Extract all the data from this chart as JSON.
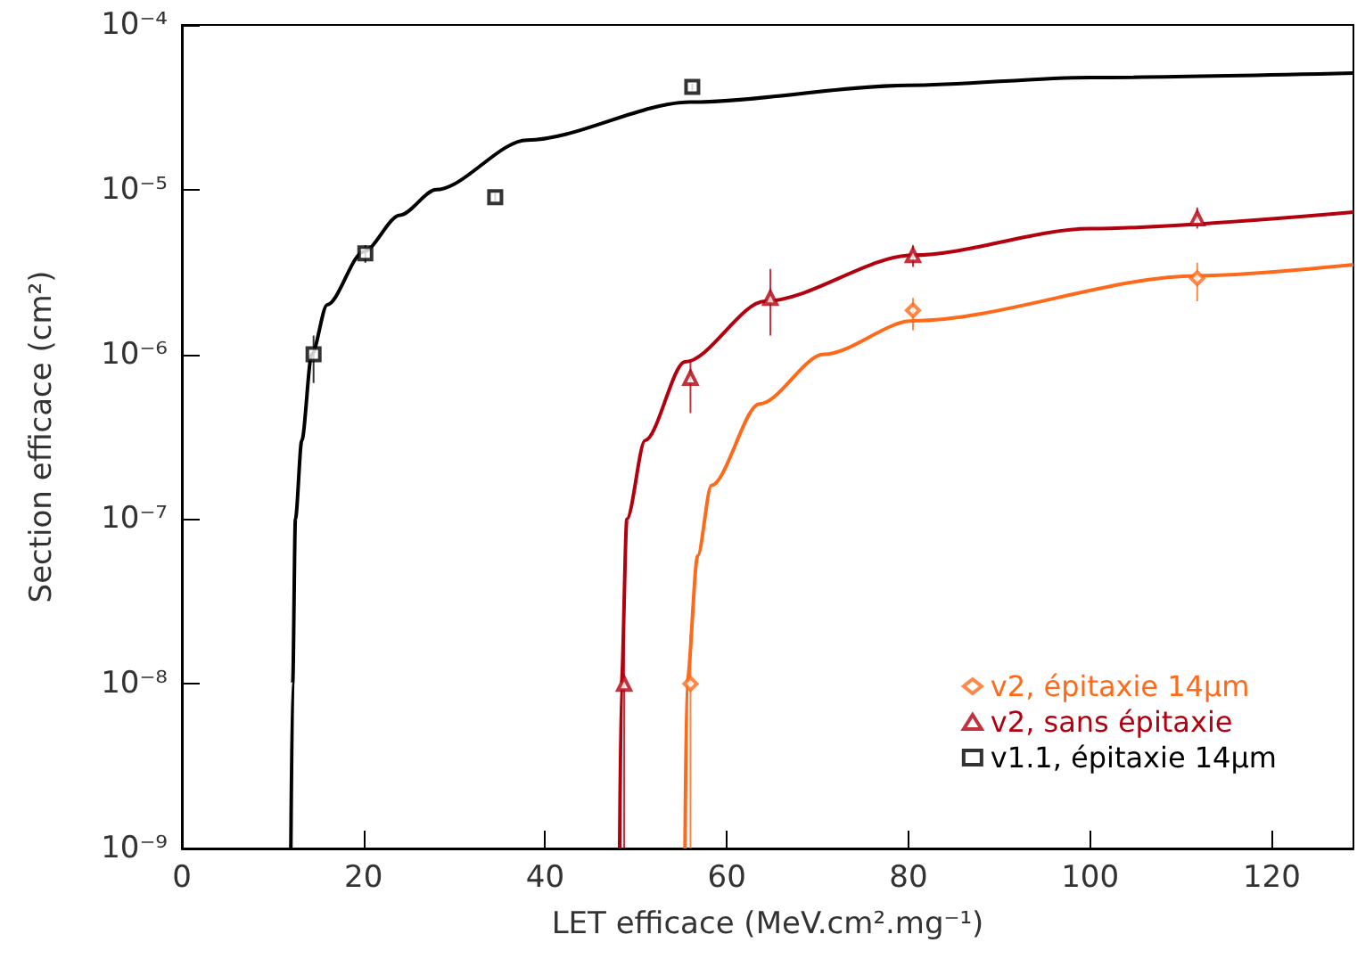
{
  "chart_data": {
    "type": "scatter",
    "xlabel": "LET efficace (MeV.cm².mg⁻¹)",
    "ylabel": "Section efficace (cm²)",
    "xlim": [
      0,
      129
    ],
    "xticks": [
      0,
      20,
      40,
      60,
      80,
      100,
      120
    ],
    "ylim": [
      1e-09,
      0.0001
    ],
    "yticks": [
      {
        "value": 1e-09,
        "label": "10⁻⁹"
      },
      {
        "value": 1e-08,
        "label": "10⁻⁸"
      },
      {
        "value": 1e-07,
        "label": "10⁻⁷"
      },
      {
        "value": 1e-06,
        "label": "10⁻⁶"
      },
      {
        "value": 1e-05,
        "label": "10⁻⁵"
      },
      {
        "value": 0.0001,
        "label": "10⁻⁴"
      }
    ],
    "log": "y",
    "grid": false,
    "legend": "bottom right",
    "series": [
      {
        "name": "v2, épitaxie 14μm",
        "color": "#ff6a1a",
        "marker": "diamond",
        "x": [
          56,
          80.5,
          111.8
        ],
        "values": [
          1e-08,
          1.85e-06,
          2.9e-06
        ],
        "errors": [
          [
            1e-09,
            2e-08
          ],
          [
            1.4e-06,
            2.2e-06
          ],
          [
            2.1e-06,
            3.6e-06
          ]
        ]
      },
      {
        "name": "v2, sans épitaxie",
        "color": "#b3000f",
        "marker": "triangle",
        "x": [
          48.7,
          56,
          64.8,
          80.5,
          111.8
        ],
        "values": [
          1e-08,
          7.2e-07,
          2.2e-06,
          4e-06,
          6.7e-06
        ],
        "errors": [
          [
            1e-09,
            2e-08
          ],
          [
            4.4e-07,
            9.3e-07
          ],
          [
            1.3e-06,
            3.3e-06
          ],
          [
            3.4e-06,
            4.6e-06
          ],
          [
            5.8e-06,
            7.8e-06
          ]
        ]
      },
      {
        "name": "v1.1, épitaxie 14μm",
        "color": "#000000",
        "marker": "square",
        "x": [
          14.5,
          20.2,
          34.5,
          56.2
        ],
        "values": [
          1e-06,
          4.1e-06,
          9e-06,
          4.2e-05
        ],
        "errors": [
          [
            6.7e-07,
            1.3e-06
          ],
          [
            3.6e-06,
            4.6e-06
          ],
          [
            8.5e-06,
            9.5e-06
          ],
          [
            4e-05,
            4.4e-05
          ]
        ]
      },
      {
        "type": "line",
        "color": "#ff6a1a",
        "marker": "none",
        "line_style": "solid",
        "x": [
          55.4,
          55.6,
          56.8,
          58.3,
          63.6,
          70.7,
          80.5,
          111.8,
          129
        ],
        "values": [
          1e-09,
          1e-08,
          6e-08,
          1.6e-07,
          5e-07,
          1e-06,
          1.6e-06,
          3e-06,
          3.5e-06
        ]
      },
      {
        "type": "line",
        "color": "#b3000f",
        "marker": "none",
        "line_style": "solid",
        "x": [
          48.2,
          48.4,
          49,
          51,
          55.4,
          64.2,
          80.5,
          100,
          129
        ],
        "values": [
          1e-09,
          1e-08,
          1e-07,
          3e-07,
          9e-07,
          2.1e-06,
          4e-06,
          5.8e-06,
          7.3e-06
        ]
      },
      {
        "type": "line",
        "color": "#000000",
        "marker": "none",
        "line_style": "solid",
        "x": [
          12,
          12.2,
          12.5,
          13.2,
          14.3,
          16,
          20,
          24,
          28,
          38,
          56,
          80,
          100,
          129
        ],
        "values": [
          1e-09,
          1e-08,
          1e-07,
          3e-07,
          1e-06,
          2e-06,
          4.2e-06,
          7e-06,
          1e-05,
          2e-05,
          3.4e-05,
          4.3e-05,
          4.8e-05,
          5.1e-05
        ]
      }
    ]
  }
}
